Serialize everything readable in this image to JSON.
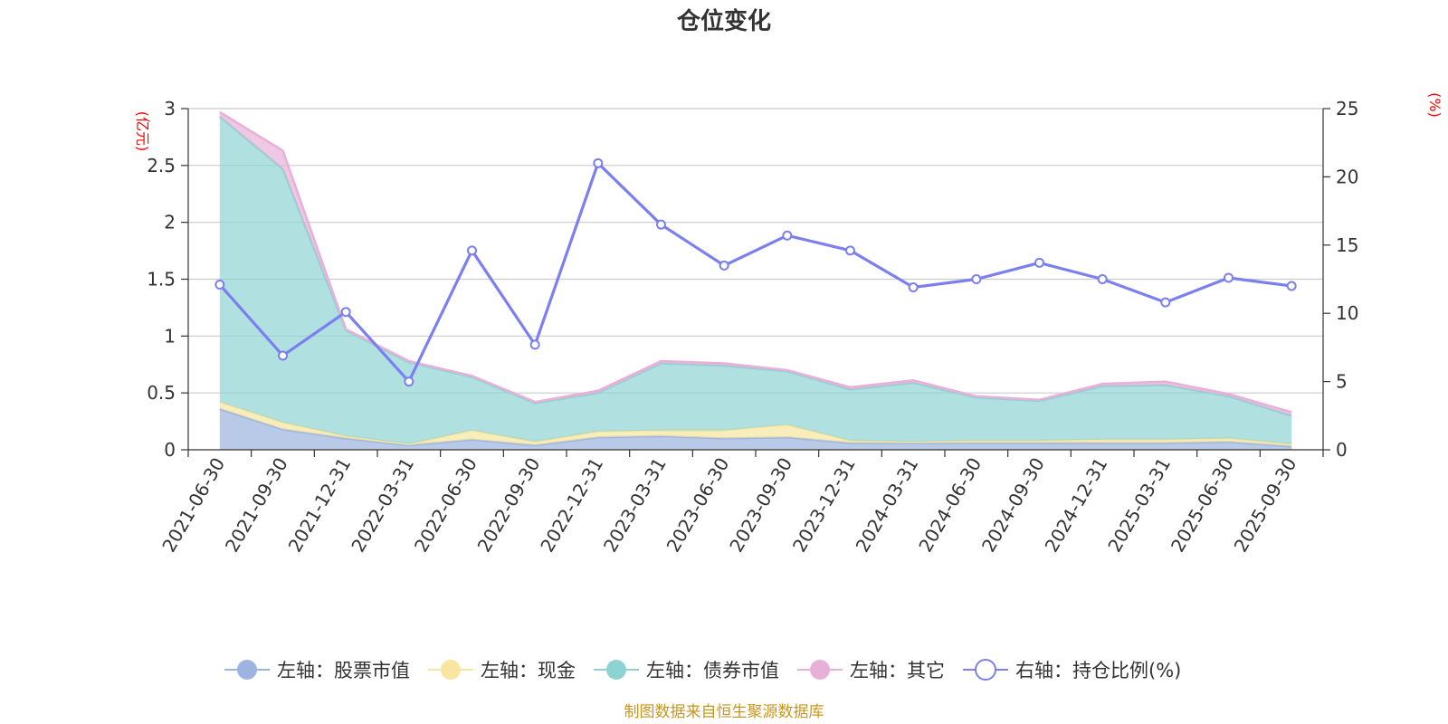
{
  "chart_data": {
    "type": "area",
    "title": "仓位变化",
    "left_unit": "(亿元)",
    "right_unit": "(%)",
    "categories": [
      "2021-06-30",
      "2021-09-30",
      "2021-12-31",
      "2022-03-31",
      "2022-06-30",
      "2022-09-30",
      "2022-12-31",
      "2023-03-31",
      "2023-06-30",
      "2023-09-30",
      "2023-12-31",
      "2024-03-31",
      "2024-06-30",
      "2024-09-30",
      "2024-12-31",
      "2025-03-31",
      "2025-06-30",
      "2025-09-30"
    ],
    "left_axis": {
      "min": 0,
      "max": 3,
      "ticks": [
        "0",
        "0.5",
        "1",
        "1.5",
        "2",
        "2.5",
        "3"
      ]
    },
    "right_axis": {
      "min": 0,
      "max": 25,
      "ticks": [
        "0",
        "5",
        "10",
        "15",
        "20",
        "25"
      ]
    },
    "grid": true,
    "legend_position": "bottom",
    "series": [
      {
        "name": "左轴：股票市值",
        "axis": "left",
        "stack": true,
        "color": "#9bb4e0",
        "values": [
          0.36,
          0.18,
          0.1,
          0.04,
          0.09,
          0.04,
          0.11,
          0.12,
          0.1,
          0.11,
          0.06,
          0.06,
          0.06,
          0.06,
          0.06,
          0.06,
          0.07,
          0.03
        ]
      },
      {
        "name": "左轴：现金",
        "axis": "left",
        "stack": true,
        "color": "#f8e6a0",
        "values": [
          0.06,
          0.06,
          0.02,
          0.01,
          0.08,
          0.03,
          0.05,
          0.05,
          0.07,
          0.11,
          0.02,
          0.01,
          0.02,
          0.02,
          0.03,
          0.03,
          0.03,
          0.02
        ]
      },
      {
        "name": "左轴：债券市值",
        "axis": "left",
        "stack": true,
        "color": "#8ed3d3",
        "values": [
          2.51,
          2.23,
          0.93,
          0.72,
          0.47,
          0.34,
          0.34,
          0.59,
          0.57,
          0.47,
          0.45,
          0.52,
          0.38,
          0.35,
          0.47,
          0.48,
          0.37,
          0.25
        ]
      },
      {
        "name": "左轴：其它",
        "axis": "left",
        "stack": true,
        "color": "#e8b0d8",
        "values": [
          0.04,
          0.16,
          0.01,
          0.01,
          0.01,
          0.01,
          0.02,
          0.02,
          0.02,
          0.01,
          0.02,
          0.02,
          0.01,
          0.01,
          0.02,
          0.03,
          0.02,
          0.03
        ]
      },
      {
        "name": "右轴：持仓比例(%)",
        "axis": "right",
        "type": "line",
        "color": "#7b7ff0",
        "values": [
          12.1,
          6.9,
          10.1,
          5.0,
          14.6,
          7.7,
          21.0,
          16.5,
          13.5,
          15.7,
          14.6,
          11.9,
          12.5,
          13.7,
          12.5,
          10.8,
          12.6,
          12.0
        ]
      }
    ]
  },
  "footer": {
    "source": "制图数据来自恒生聚源数据库"
  }
}
